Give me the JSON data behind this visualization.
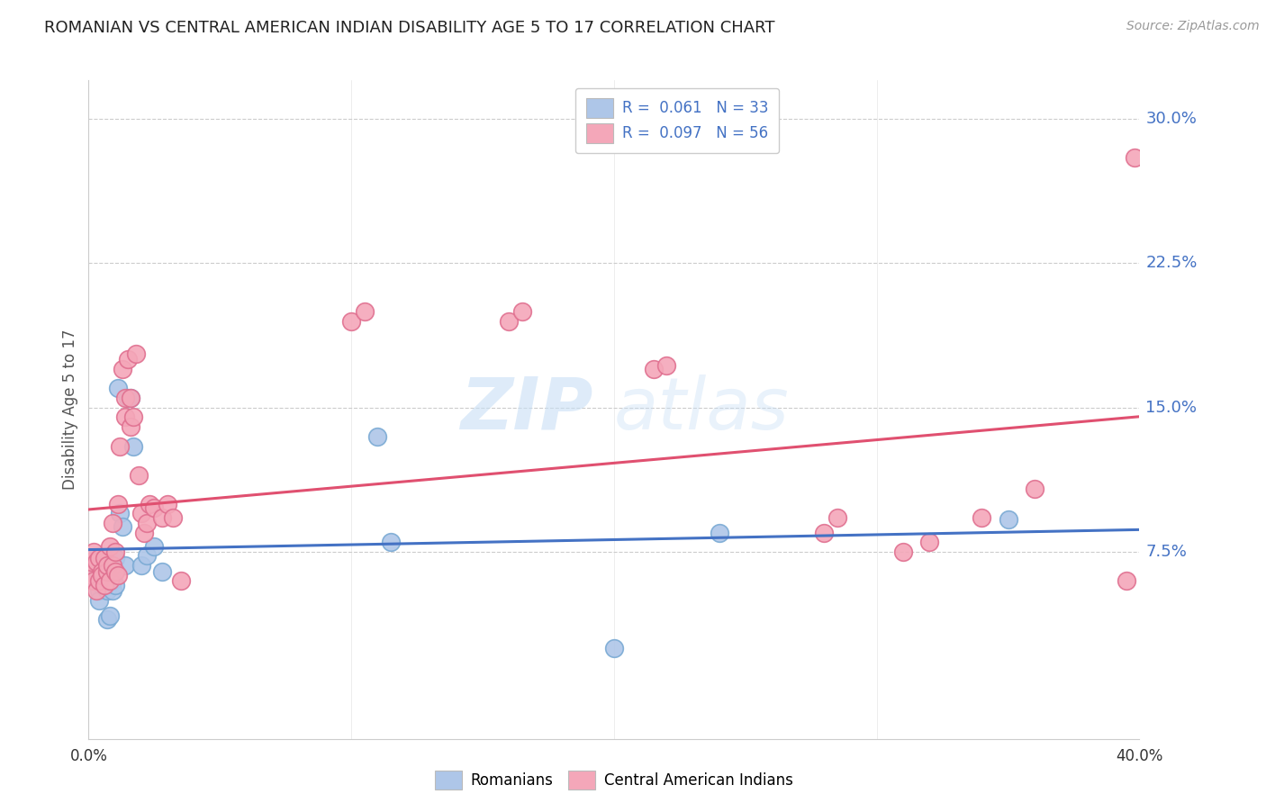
{
  "title": "ROMANIAN VS CENTRAL AMERICAN INDIAN DISABILITY AGE 5 TO 17 CORRELATION CHART",
  "source": "Source: ZipAtlas.com",
  "ylabel": "Disability Age 5 to 17",
  "xlim": [
    0.0,
    0.4
  ],
  "ylim": [
    -0.022,
    0.32
  ],
  "yticks": [
    0.075,
    0.15,
    0.225,
    0.3
  ],
  "ytick_labels": [
    "7.5%",
    "15.0%",
    "22.5%",
    "30.0%"
  ],
  "watermark_zip": "ZIP",
  "watermark_atlas": "atlas",
  "romanian_color": "#aec6e8",
  "romanian_edge_color": "#7aaad4",
  "central_color": "#f4a7b9",
  "central_edge_color": "#e07090",
  "romanian_line_color": "#4472c4",
  "central_line_color": "#e05070",
  "title_color": "#222222",
  "ytick_color": "#4472c4",
  "xtick_color": "#333333",
  "background_color": "#ffffff",
  "grid_color": "#cccccc",
  "legend_edge_color": "#cccccc",
  "romanian_x": [
    0.001,
    0.002,
    0.003,
    0.004,
    0.004,
    0.005,
    0.005,
    0.006,
    0.006,
    0.007,
    0.007,
    0.008,
    0.008,
    0.009,
    0.009,
    0.01,
    0.01,
    0.011,
    0.012,
    0.013,
    0.014,
    0.015,
    0.016,
    0.017,
    0.02,
    0.022,
    0.025,
    0.028,
    0.11,
    0.115,
    0.2,
    0.24,
    0.35
  ],
  "romanian_y": [
    0.063,
    0.063,
    0.06,
    0.055,
    0.05,
    0.063,
    0.058,
    0.065,
    0.07,
    0.055,
    0.04,
    0.042,
    0.068,
    0.055,
    0.06,
    0.058,
    0.072,
    0.16,
    0.095,
    0.088,
    0.068,
    0.155,
    0.155,
    0.13,
    0.068,
    0.073,
    0.078,
    0.065,
    0.135,
    0.08,
    0.025,
    0.085,
    0.092
  ],
  "central_x": [
    0.001,
    0.001,
    0.002,
    0.002,
    0.003,
    0.003,
    0.004,
    0.004,
    0.005,
    0.005,
    0.006,
    0.006,
    0.007,
    0.007,
    0.008,
    0.008,
    0.009,
    0.009,
    0.01,
    0.01,
    0.011,
    0.011,
    0.012,
    0.013,
    0.014,
    0.014,
    0.015,
    0.016,
    0.016,
    0.017,
    0.018,
    0.019,
    0.02,
    0.021,
    0.022,
    0.023,
    0.025,
    0.028,
    0.03,
    0.032,
    0.035,
    0.1,
    0.105,
    0.16,
    0.165,
    0.215,
    0.22,
    0.28,
    0.285,
    0.31,
    0.32,
    0.34,
    0.36,
    0.395,
    0.398
  ],
  "central_y": [
    0.063,
    0.07,
    0.06,
    0.075,
    0.055,
    0.07,
    0.06,
    0.072,
    0.065,
    0.063,
    0.058,
    0.072,
    0.065,
    0.068,
    0.06,
    0.078,
    0.068,
    0.09,
    0.065,
    0.075,
    0.063,
    0.1,
    0.13,
    0.17,
    0.145,
    0.155,
    0.175,
    0.14,
    0.155,
    0.145,
    0.178,
    0.115,
    0.095,
    0.085,
    0.09,
    0.1,
    0.098,
    0.093,
    0.1,
    0.093,
    0.06,
    0.195,
    0.2,
    0.195,
    0.2,
    0.17,
    0.172,
    0.085,
    0.093,
    0.075,
    0.08,
    0.093,
    0.108,
    0.06,
    0.28
  ]
}
